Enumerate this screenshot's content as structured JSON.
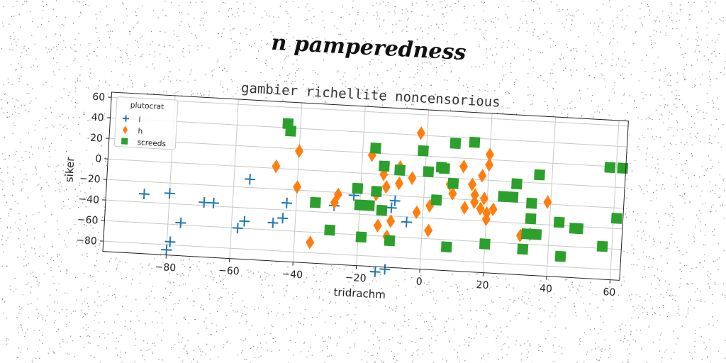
{
  "suptitle": "n pamperedness",
  "chart_data": {
    "type": "scatter",
    "title": "gambier richellite noncensorious",
    "xlabel": "tridrachm",
    "ylabel": "siker",
    "xlim": [
      -100,
      63
    ],
    "ylim": [
      -90,
      65
    ],
    "xticks": [
      -80,
      -60,
      -40,
      -20,
      0,
      20,
      40,
      60
    ],
    "yticks": [
      -80,
      -60,
      -40,
      -20,
      0,
      20,
      40,
      60
    ],
    "grid": true,
    "legend": {
      "title": "plutocrat",
      "placement": "top-left"
    },
    "series": [
      {
        "name": "l",
        "marker": "plus",
        "color": "#1f77b4",
        "points": [
          [
            -88,
            -32
          ],
          [
            -80,
            -30
          ],
          [
            -79,
            -77
          ],
          [
            -80,
            -85
          ],
          [
            -76,
            -58
          ],
          [
            -69,
            -37
          ],
          [
            -66,
            -37
          ],
          [
            -58,
            -60
          ],
          [
            -55,
            -12
          ],
          [
            -56,
            -53
          ],
          [
            -47,
            -53
          ],
          [
            -44,
            -48
          ],
          [
            -43,
            -33
          ],
          [
            -28,
            -33
          ],
          [
            -22,
            -22
          ],
          [
            -9,
            -25
          ],
          [
            -10,
            -32
          ],
          [
            -5,
            -45
          ],
          [
            -14,
            -95
          ],
          [
            -11,
            -92
          ]
        ]
      },
      {
        "name": "h",
        "marker": "diamond",
        "color": "#ff7f0e",
        "points": [
          [
            -47,
            2
          ],
          [
            -40,
            18
          ],
          [
            -40,
            -17
          ],
          [
            -35,
            -70
          ],
          [
            -27,
            -22
          ],
          [
            -28,
            -30
          ],
          [
            -17,
            18
          ],
          [
            -15,
            -20
          ],
          [
            -13,
            0
          ],
          [
            -14,
            -50
          ],
          [
            -12,
            -12
          ],
          [
            -11,
            -60
          ],
          [
            -10,
            -45
          ],
          [
            -8,
            -8
          ],
          [
            -8,
            8
          ],
          [
            -4,
            -2
          ],
          [
            -2,
            42
          ],
          [
            -2,
            -35
          ],
          [
            2,
            -28
          ],
          [
            2,
            -52
          ],
          [
            8,
            -6
          ],
          [
            9,
            -15
          ],
          [
            12,
            12
          ],
          [
            13,
            -28
          ],
          [
            15,
            -5
          ],
          [
            16,
            -15
          ],
          [
            16,
            -22
          ],
          [
            18,
            4
          ],
          [
            18,
            -28
          ],
          [
            19,
            -18
          ],
          [
            20,
            25
          ],
          [
            20,
            15
          ],
          [
            20,
            -32
          ],
          [
            20,
            -38
          ],
          [
            22,
            -28
          ],
          [
            31,
            -52
          ],
          [
            34,
            -50
          ],
          [
            39,
            -18
          ]
        ]
      },
      {
        "name": "screeds",
        "marker": "square",
        "color": "#2ca02c",
        "points": [
          [
            -44,
            44
          ],
          [
            -43,
            37
          ],
          [
            -34,
            -31
          ],
          [
            -29,
            -57
          ],
          [
            -21,
            -15
          ],
          [
            -20,
            -31
          ],
          [
            -19,
            -62
          ],
          [
            -17,
            -31
          ],
          [
            -16,
            25
          ],
          [
            -15,
            -17
          ],
          [
            -13,
            -35
          ],
          [
            -13,
            8
          ],
          [
            -10,
            -64
          ],
          [
            -8,
            5
          ],
          [
            -1,
            25
          ],
          [
            1,
            5
          ],
          [
            4,
            -22
          ],
          [
            5,
            10
          ],
          [
            6,
            9
          ],
          [
            8,
            -67
          ],
          [
            9,
            34
          ],
          [
            9,
            -5
          ],
          [
            15,
            36
          ],
          [
            20,
            -62
          ],
          [
            25,
            -15
          ],
          [
            28,
            -15
          ],
          [
            29,
            -2
          ],
          [
            32,
            -65
          ],
          [
            33,
            -50
          ],
          [
            34,
            -20
          ],
          [
            34,
            -35
          ],
          [
            36,
            -50
          ],
          [
            36,
            8
          ],
          [
            43,
            -37
          ],
          [
            44,
            -70
          ],
          [
            48,
            -42
          ],
          [
            49,
            -42
          ],
          [
            57,
            -58
          ],
          [
            58,
            19
          ],
          [
            62,
            19
          ],
          [
            61,
            -30
          ]
        ]
      }
    ]
  }
}
